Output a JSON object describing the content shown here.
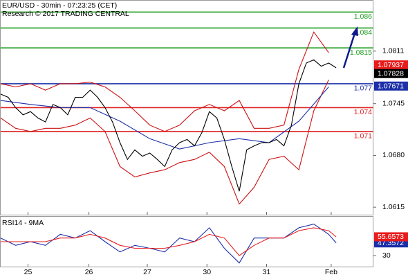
{
  "chart_data": [
    {
      "type": "line",
      "title": "EUR/USD - 30min - 07:23:25 (CET)",
      "subtitle": "Research © 2017 TRADING CENTRAL",
      "xlim": [
        0,
        300
      ],
      "ylim": [
        1.06056,
        1.08743
      ],
      "yticks": [
        1.0811,
        1.0745,
        {
          "value": 1.068,
          "label": "1.0680"
        },
        1.0615
      ],
      "levels": [
        {
          "value": 1.086,
          "color": "#1e9e1e"
        },
        {
          "value": 1.084,
          "color": "#1e9e1e"
        },
        {
          "value": 1.0815,
          "color": "#1e9e1e"
        },
        {
          "value": 1.077,
          "color": "#1c2fa8"
        },
        {
          "value": 1.074,
          "color": "#e02020"
        },
        {
          "value": 1.071,
          "color": "#e02020"
        }
      ],
      "tags": [
        {
          "value": 1.07937,
          "color": "#e81c1c"
        },
        {
          "value": 1.07828,
          "color": "#000000"
        },
        {
          "value": 1.07671,
          "color": "#1c2fa8"
        }
      ],
      "series": [
        {
          "color": "#cc1010",
          "x": [
            0,
            12,
            24,
            36,
            48,
            60,
            72,
            84,
            96,
            108,
            120,
            132,
            144,
            156,
            168,
            180,
            192,
            204,
            216,
            228,
            240,
            252,
            264
          ],
          "values": [
            1.077,
            1.0766,
            1.077,
            1.0762,
            1.077,
            1.077,
            1.0772,
            1.0766,
            1.0753,
            1.0736,
            1.0718,
            1.071,
            1.0718,
            1.0736,
            1.0744,
            1.0736,
            1.0749,
            1.0714,
            1.0714,
            1.0718,
            1.0788,
            1.0835,
            1.0809
          ]
        },
        {
          "color": "#cc1010",
          "x": [
            0,
            12,
            24,
            36,
            48,
            60,
            72,
            84,
            96,
            108,
            120,
            132,
            144,
            156,
            168,
            180,
            192,
            204,
            216,
            228,
            240,
            252,
            264
          ],
          "values": [
            1.0727,
            1.0714,
            1.071,
            1.0714,
            1.0714,
            1.0718,
            1.0727,
            1.071,
            1.0666,
            1.0653,
            1.0658,
            1.0662,
            1.0671,
            1.0675,
            1.0684,
            1.0666,
            1.0619,
            1.064,
            1.0675,
            1.0679,
            1.0662,
            1.0736,
            1.0775
          ]
        },
        {
          "color": "#1c2fa8",
          "x": [
            0,
            24,
            48,
            72,
            96,
            120,
            144,
            168,
            192,
            216,
            240,
            264
          ],
          "values": [
            1.0749,
            1.0744,
            1.074,
            1.074,
            1.0723,
            1.0701,
            1.0688,
            1.0696,
            1.0701,
            1.0696,
            1.0723,
            1.0766
          ]
        },
        {
          "color": "#000000",
          "x": [
            0,
            6,
            12,
            18,
            24,
            30,
            36,
            42,
            48,
            54,
            60,
            66,
            72,
            78,
            84,
            90,
            96,
            102,
            108,
            114,
            120,
            126,
            132,
            138,
            144,
            150,
            156,
            162,
            168,
            174,
            180,
            186,
            192,
            198,
            204,
            210,
            216,
            222,
            228,
            234,
            240,
            246,
            252,
            258,
            264,
            270
          ],
          "values": [
            1.0757,
            1.0753,
            1.074,
            1.0731,
            1.0735,
            1.0727,
            1.0722,
            1.0744,
            1.074,
            1.0731,
            1.0753,
            1.0753,
            1.0762,
            1.0753,
            1.074,
            1.0722,
            1.0696,
            1.0675,
            1.0687,
            1.0679,
            1.0683,
            1.0675,
            1.0666,
            1.0687,
            1.0696,
            1.07,
            1.0692,
            1.0709,
            1.0735,
            1.0727,
            1.07,
            1.0666,
            1.0635,
            1.0687,
            1.0692,
            1.0696,
            1.0696,
            1.07,
            1.0692,
            1.0718,
            1.077,
            1.0796,
            1.08,
            1.0792,
            1.0796,
            1.079
          ]
        }
      ]
    },
    {
      "type": "line",
      "title": "RSI14 - 9MA",
      "xlim": [
        0,
        300
      ],
      "ylim": [
        15,
        83
      ],
      "yticks": [
        30
      ],
      "xticks": [
        {
          "value": 22,
          "label": "25"
        },
        {
          "value": 71,
          "label": "26"
        },
        {
          "value": 118,
          "label": "27"
        },
        {
          "value": 166,
          "label": "30"
        },
        {
          "value": 214,
          "label": "31"
        },
        {
          "value": 266,
          "label": "Feb"
        }
      ],
      "series": [
        {
          "color": "#1c2fa8",
          "x": [
            0,
            12,
            24,
            36,
            48,
            60,
            72,
            84,
            96,
            108,
            120,
            132,
            144,
            156,
            168,
            180,
            192,
            204,
            216,
            228,
            240,
            252,
            264,
            270
          ],
          "values": [
            54,
            44,
            49,
            44,
            59,
            54,
            64,
            49,
            35,
            44,
            40,
            35,
            54,
            49,
            68,
            40,
            20,
            54,
            54,
            54,
            68,
            73,
            59,
            47.3572
          ]
        },
        {
          "color": "#e81c1c",
          "x": [
            0,
            12,
            24,
            36,
            48,
            60,
            72,
            84,
            96,
            108,
            120,
            132,
            144,
            156,
            168,
            180,
            192,
            204,
            216,
            228,
            240,
            252,
            264,
            270
          ],
          "values": [
            49,
            49,
            49,
            49,
            54,
            54,
            59,
            54,
            44,
            40,
            40,
            40,
            44,
            49,
            59,
            54,
            30,
            44,
            54,
            54,
            64,
            68,
            64,
            55.6573
          ]
        }
      ]
    }
  ]
}
